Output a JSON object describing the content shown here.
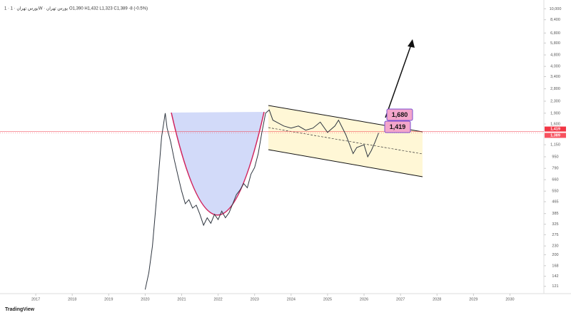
{
  "chart_data": {
    "type": "line",
    "title": "1 · بورس تهران · 1W · بورس تهران  O1,390 H1,432 L1,323 C1,389 -8 (-0.5%)",
    "brand": "TradingView",
    "log_scale": true,
    "grid": false,
    "color": "#2f3640",
    "x": [
      2020.0,
      2020.1,
      2020.2,
      2020.3,
      2020.4,
      2020.45,
      2020.55,
      2020.6,
      2020.7,
      2020.8,
      2020.9,
      2021.0,
      2021.1,
      2021.2,
      2021.3,
      2021.4,
      2021.5,
      2021.6,
      2021.7,
      2021.8,
      2021.9,
      2022.0,
      2022.1,
      2022.2,
      2022.3,
      2022.4,
      2022.5,
      2022.6,
      2022.7,
      2022.8,
      2022.9,
      2023.0,
      2023.1,
      2023.2,
      2023.3,
      2023.4,
      2023.5,
      2023.6,
      2023.8,
      2024.0,
      2024.2,
      2024.4,
      2024.6,
      2024.8,
      2025.0,
      2025.2,
      2025.3,
      2025.5,
      2025.7,
      2025.8,
      2026.0,
      2026.1,
      2026.2,
      2026.3,
      2026.4
    ],
    "values": [
      115,
      150,
      230,
      450,
      900,
      1300,
      1900,
      1500,
      1200,
      900,
      700,
      550,
      450,
      480,
      420,
      440,
      380,
      320,
      360,
      330,
      380,
      350,
      400,
      360,
      390,
      450,
      520,
      560,
      620,
      580,
      720,
      800,
      1000,
      1400,
      1900,
      2000,
      1700,
      1650,
      1550,
      1500,
      1550,
      1450,
      1500,
      1650,
      1400,
      1550,
      1700,
      1350,
      1000,
      1100,
      1150,
      950,
      1050,
      1200,
      1389
    ],
    "xlim": [
      2016.02,
      2030.93
    ],
    "xticks": [
      2017,
      2018,
      2019,
      2020,
      2021,
      2022,
      2023,
      2024,
      2025,
      2026,
      2027,
      2028,
      2029,
      2030
    ],
    "ylim": [
      118,
      10500
    ],
    "yticks": [
      {
        "value": 10000,
        "label": "10,000"
      },
      {
        "value": 8400,
        "label": "8,400"
      },
      {
        "value": 6800,
        "label": "6,800"
      },
      {
        "value": 5800,
        "label": "5,800"
      },
      {
        "value": 4800,
        "label": "4,800"
      },
      {
        "value": 4000,
        "label": "4,000"
      },
      {
        "value": 3400,
        "label": "3,400"
      },
      {
        "value": 2800,
        "label": "2,800"
      },
      {
        "value": 2300,
        "label": "2,300"
      },
      {
        "value": 1900,
        "label": "1,900"
      },
      {
        "value": 1600,
        "label": "1,600"
      },
      {
        "value": 1150,
        "label": "1,150"
      },
      950,
      790,
      660,
      550,
      465,
      385,
      325,
      275,
      230,
      200,
      168,
      142,
      121
    ],
    "markers": [
      {
        "value": 1419,
        "label": "1,419",
        "color": "#f23645"
      },
      {
        "value": 1389,
        "label": "1,389",
        "color": "#f7525f"
      }
    ],
    "annotations": [
      "1,680",
      "1,419"
    ]
  }
}
